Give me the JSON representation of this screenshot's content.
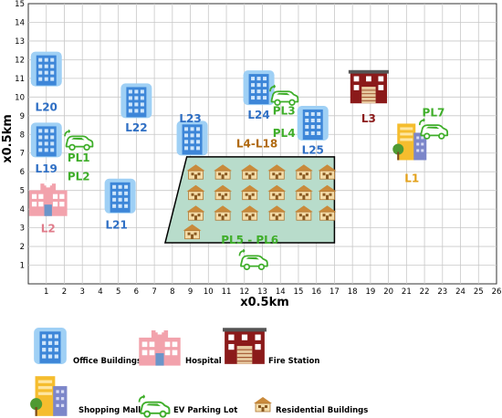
{
  "axes": {
    "x_title": "x0.5km",
    "y_title": "x0.5km",
    "x_ticks": [
      "1",
      "2",
      "3",
      "4",
      "5",
      "6",
      "7",
      "8",
      "9",
      "10",
      "11",
      "12",
      "13",
      "14",
      "15",
      "16",
      "17",
      "18",
      "19",
      "20",
      "21",
      "22",
      "23",
      "24",
      "25",
      "26"
    ],
    "y_ticks": [
      "1",
      "2",
      "3",
      "4",
      "5",
      "6",
      "7",
      "8",
      "9",
      "10",
      "11",
      "12",
      "13",
      "14",
      "15"
    ]
  },
  "grid": {
    "x_range": [
      0,
      26
    ],
    "y_range": [
      0,
      15
    ],
    "visible": true
  },
  "colors": {
    "office_label": "#2f6fc4",
    "hospital_label": "#e07b8a",
    "fire_label": "#8b1a1a",
    "mall_label": "#e3a11a",
    "parking_label": "#3fae2a",
    "residential_label": "#b06a10",
    "residential_area": "#b8dccb"
  },
  "map_items": [
    {
      "kind": "office",
      "label": "L20",
      "x": 1,
      "y": 11.5,
      "lx": 1,
      "ly": 9.5
    },
    {
      "kind": "office",
      "label": "L22",
      "x": 6,
      "y": 9.8,
      "lx": 6,
      "ly": 8.4
    },
    {
      "kind": "office",
      "label": "L23",
      "x": 9.1,
      "y": 7.8,
      "lx": 9,
      "ly": 8.9
    },
    {
      "kind": "office",
      "label": "L24",
      "x": 12.8,
      "y": 10.5,
      "lx": 12.8,
      "ly": 9.1
    },
    {
      "kind": "office",
      "label": "L25",
      "x": 15.8,
      "y": 8.6,
      "lx": 15.8,
      "ly": 7.2
    },
    {
      "kind": "office",
      "label": "L19",
      "x": 1,
      "y": 7.7,
      "lx": 1,
      "ly": 6.2
    },
    {
      "kind": "office",
      "label": "L21",
      "x": 5.1,
      "y": 4.7,
      "lx": 4.9,
      "ly": 3.2
    },
    {
      "kind": "hospital",
      "label": "L2",
      "x": 1.1,
      "y": 4.6,
      "lx": 1.1,
      "ly": 3
    },
    {
      "kind": "fire",
      "label": "L3",
      "x": 18.9,
      "y": 10.6,
      "lx": 18.9,
      "ly": 8.9
    },
    {
      "kind": "mall",
      "label": "L1",
      "x": 21.3,
      "y": 7.6,
      "lx": 21.3,
      "ly": 5.7
    }
  ],
  "parking_items": [
    {
      "label": "PL1",
      "x2": "PL2",
      "cx": 2.8,
      "cy": 7.7,
      "lx": 2.8,
      "ly": 6.8,
      "lx2": 2.8,
      "ly2": 5.8
    },
    {
      "label": "PL3",
      "x2": "PL4",
      "cx": 14.2,
      "cy": 10.1,
      "lx": 14.2,
      "ly": 9.3,
      "lx2": 14.2,
      "ly2": 8.1
    },
    {
      "label": "PL5 - PL6",
      "x2": "",
      "cx": 12.5,
      "cy": 1.3,
      "lx": 12.3,
      "ly": 2.4,
      "lx2": 0,
      "ly2": 0
    },
    {
      "label": "PL7",
      "x2": "",
      "cx": 22.5,
      "cy": 8.3,
      "lx": 22.5,
      "ly": 9.2,
      "lx2": 0,
      "ly2": 0
    }
  ],
  "residential": {
    "label": "L4-L18",
    "lx": 12.7,
    "ly": 7.3
  },
  "legend": {
    "office": "Office Buildings",
    "hospital": "Hospital",
    "fire": "Fire Station",
    "mall": "Shopping Mall",
    "parking": "EV Parking Lot",
    "residential": "Residential Buildings"
  }
}
